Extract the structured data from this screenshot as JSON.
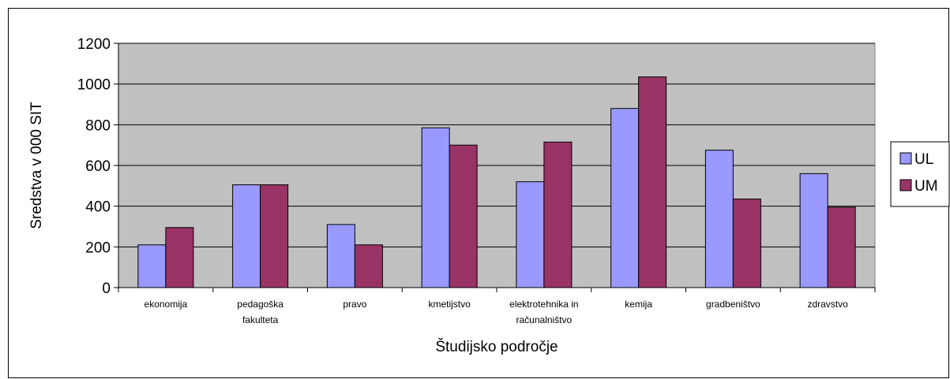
{
  "chart_data": {
    "type": "bar",
    "title": "",
    "xlabel": "Študijsko področje",
    "ylabel": "Sredstva v 000 SIT",
    "ylim": [
      0,
      1200
    ],
    "yticks": [
      0,
      200,
      400,
      600,
      800,
      1000,
      1200
    ],
    "grid": true,
    "legend_position": "right",
    "categories": [
      [
        "ekonomija"
      ],
      [
        "pedagoška",
        "fakulteta"
      ],
      [
        "pravo"
      ],
      [
        "kmetijstvo"
      ],
      [
        "elektrotehnika in",
        "računalništvo"
      ],
      [
        "kemija"
      ],
      [
        "gradbeništvo"
      ],
      [
        "zdravstvo"
      ]
    ],
    "series": [
      {
        "name": "UL",
        "color": "#9999ff",
        "values": [
          210,
          505,
          310,
          785,
          520,
          880,
          675,
          560
        ]
      },
      {
        "name": "UM",
        "color": "#993366",
        "values": [
          295,
          505,
          210,
          700,
          715,
          1035,
          435,
          395
        ]
      }
    ],
    "plot_background": "#c0c0c0"
  }
}
